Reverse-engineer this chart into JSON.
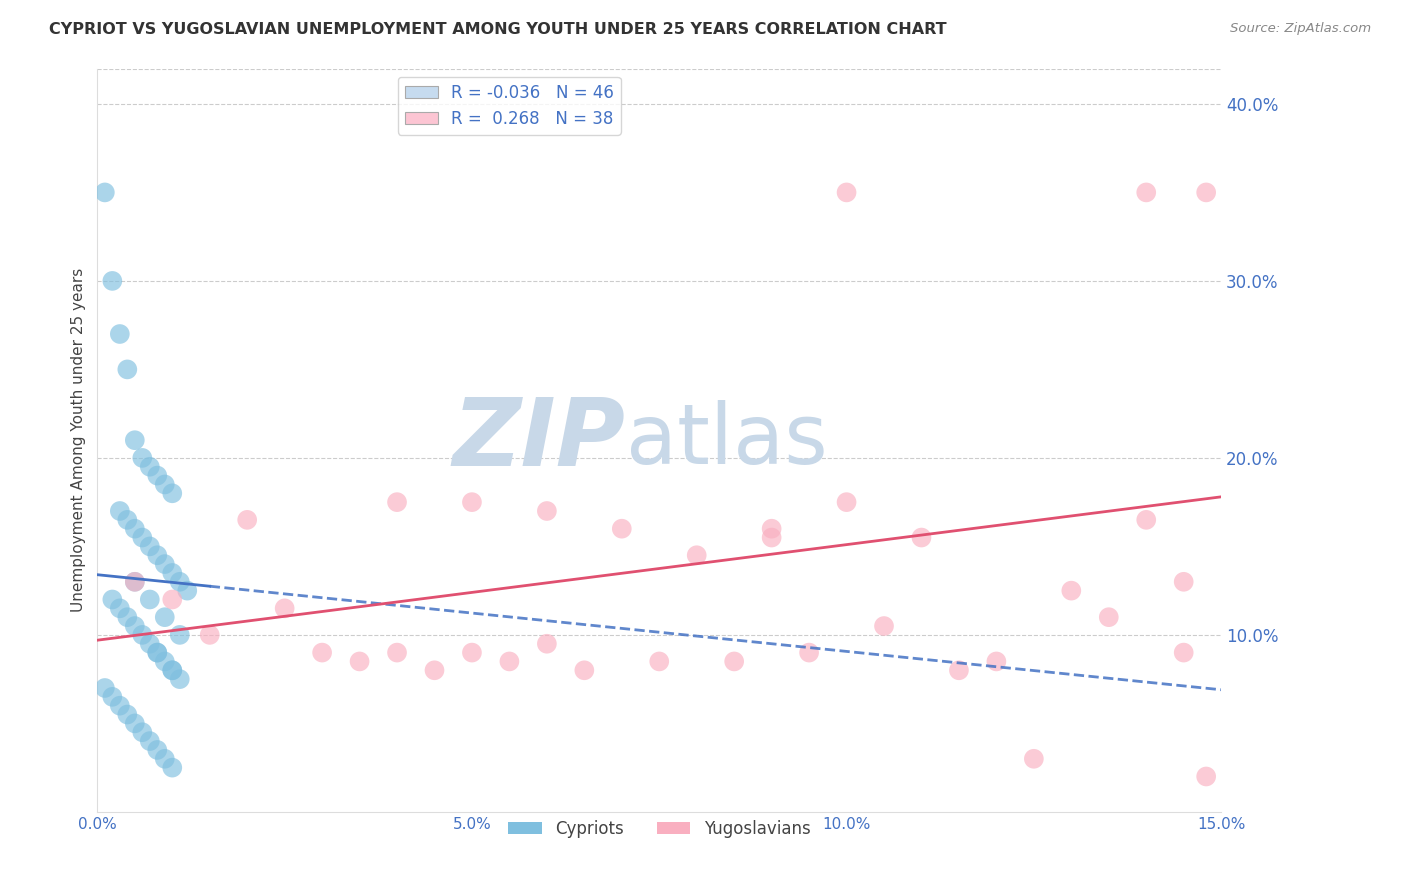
{
  "title": "CYPRIOT VS YUGOSLAVIAN UNEMPLOYMENT AMONG YOUTH UNDER 25 YEARS CORRELATION CHART",
  "source": "Source: ZipAtlas.com",
  "ylabel": "Unemployment Among Youth under 25 years",
  "xlim": [
    0,
    0.15
  ],
  "ylim": [
    0,
    0.42
  ],
  "xticks": [
    0,
    0.05,
    0.1,
    0.15
  ],
  "yticks_right": [
    0.1,
    0.2,
    0.3,
    0.4
  ],
  "cypriot_R": -0.036,
  "cypriot_N": 46,
  "yugoslavian_R": 0.268,
  "yugoslavian_N": 38,
  "cypriot_color": "#7fbfdf",
  "yugoslavian_color": "#f9afc0",
  "cypriot_line_color": "#4472c4",
  "yugoslavian_line_color": "#e05070",
  "legend_box_color_cy": "#c6dbef",
  "legend_box_color_yu": "#fcc5d3",
  "watermark_zip_color": "#c8d8e8",
  "watermark_atlas_color": "#c8d8e8",
  "background_color": "#ffffff",
  "tick_color": "#4472c4",
  "grid_color": "#cccccc",
  "cypriot_x": [
    0.001,
    0.002,
    0.003,
    0.004,
    0.005,
    0.006,
    0.007,
    0.008,
    0.009,
    0.01,
    0.003,
    0.004,
    0.005,
    0.006,
    0.007,
    0.008,
    0.009,
    0.01,
    0.011,
    0.012,
    0.002,
    0.003,
    0.004,
    0.005,
    0.006,
    0.007,
    0.008,
    0.009,
    0.01,
    0.011,
    0.001,
    0.002,
    0.003,
    0.004,
    0.005,
    0.006,
    0.007,
    0.008,
    0.009,
    0.01,
    0.005,
    0.007,
    0.009,
    0.011,
    0.008,
    0.01
  ],
  "cypriot_y": [
    0.35,
    0.3,
    0.27,
    0.25,
    0.21,
    0.2,
    0.195,
    0.19,
    0.185,
    0.18,
    0.17,
    0.165,
    0.16,
    0.155,
    0.15,
    0.145,
    0.14,
    0.135,
    0.13,
    0.125,
    0.12,
    0.115,
    0.11,
    0.105,
    0.1,
    0.095,
    0.09,
    0.085,
    0.08,
    0.075,
    0.07,
    0.065,
    0.06,
    0.055,
    0.05,
    0.045,
    0.04,
    0.035,
    0.03,
    0.025,
    0.13,
    0.12,
    0.11,
    0.1,
    0.09,
    0.08
  ],
  "yugoslavian_x": [
    0.005,
    0.01,
    0.015,
    0.02,
    0.025,
    0.03,
    0.035,
    0.04,
    0.045,
    0.05,
    0.055,
    0.06,
    0.065,
    0.07,
    0.075,
    0.08,
    0.085,
    0.09,
    0.095,
    0.1,
    0.105,
    0.11,
    0.115,
    0.12,
    0.125,
    0.13,
    0.135,
    0.14,
    0.145,
    0.148,
    0.04,
    0.05,
    0.09,
    0.1,
    0.06,
    0.14,
    0.145,
    0.148
  ],
  "yugoslavian_y": [
    0.13,
    0.12,
    0.1,
    0.165,
    0.115,
    0.09,
    0.085,
    0.175,
    0.08,
    0.175,
    0.085,
    0.095,
    0.08,
    0.16,
    0.085,
    0.145,
    0.085,
    0.16,
    0.09,
    0.35,
    0.105,
    0.155,
    0.08,
    0.085,
    0.03,
    0.125,
    0.11,
    0.165,
    0.09,
    0.35,
    0.09,
    0.09,
    0.155,
    0.175,
    0.17,
    0.35,
    0.13,
    0.02
  ],
  "cypriot_line_x0": 0.0,
  "cypriot_line_x1": 0.15,
  "cypriot_line_y0": 0.134,
  "cypriot_line_y1": 0.069,
  "yugoslav_line_x0": 0.0,
  "yugoslav_line_x1": 0.15,
  "yugoslav_line_y0": 0.097,
  "yugoslav_line_y1": 0.178
}
